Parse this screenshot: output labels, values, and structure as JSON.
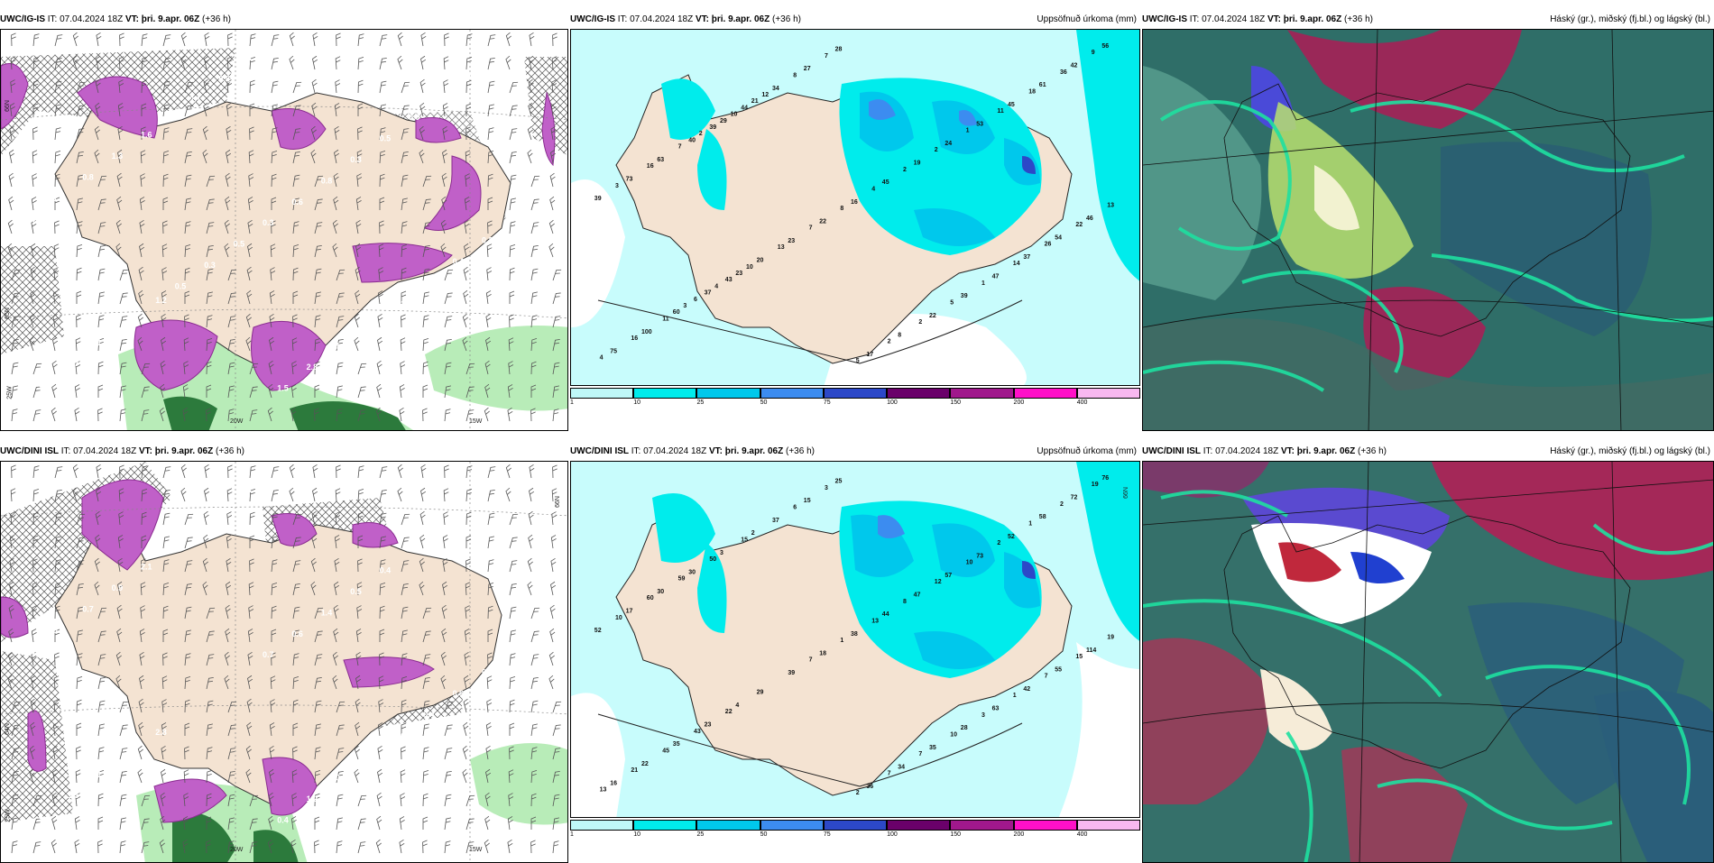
{
  "rows": [
    {
      "model": "UWC/IG-IS",
      "panels": [
        {
          "model": "UWC/IG-IS",
          "it_label": "IT:",
          "it": "07.04.2024 18Z",
          "vt_label": "VT:",
          "vt": "þri. 9.apr. 06Z",
          "lead": "(+36 h)",
          "right_title": ""
        },
        {
          "model": "UWC/IG-IS",
          "it_label": "IT:",
          "it": "07.04.2024 18Z",
          "vt_label": "VT:",
          "vt": "þri. 9.apr. 06Z",
          "lead": "(+36 h)",
          "right_title": "Uppsöfnuð úrkoma (mm)"
        },
        {
          "model": "UWC/IG-IS",
          "it_label": "IT:",
          "it": "07.04.2024 18Z",
          "vt_label": "VT:",
          "vt": "þri. 9.apr. 06Z",
          "lead": "(+36 h)",
          "right_title": "Háský (gr.), miðský (fj.bl.) og lágský (bl.)"
        }
      ],
      "precip_labels": [
        "21",
        "23",
        "29",
        "37",
        "40",
        "60",
        "63",
        "100",
        "73",
        "75",
        "39",
        "56",
        "46",
        "42",
        "54",
        "61",
        "37",
        "45",
        "47",
        "53",
        "39",
        "24",
        "22",
        "19",
        "8",
        "45",
        "17",
        "16",
        "28",
        "22",
        "27",
        "23",
        "34",
        "20",
        "44",
        "43",
        "39",
        "6",
        "7",
        "11",
        "16",
        "16",
        "3",
        "4",
        "13",
        "9",
        "22",
        "36",
        "26",
        "18",
        "14",
        "11",
        "1",
        "1",
        "5",
        "2",
        "2",
        "2",
        "2",
        "4",
        "5",
        "8",
        "7",
        "7",
        "8",
        "13",
        "12",
        "10",
        "10",
        "4",
        "2",
        "3"
      ],
      "wind_labels": [
        "0.4",
        "1.2",
        "1.6",
        "0.9",
        "1.3",
        "1.6",
        "0.8",
        "0.7",
        "1.5",
        "0.7",
        "0.4",
        "0.5",
        "0.3",
        "1.4",
        "0.4",
        "1.4",
        "0.3",
        "0.9",
        "1.2",
        "0.5",
        "1.4",
        "0.3",
        "1.9",
        "0.8",
        "2.8",
        "0.6",
        "1.5",
        "0.3",
        "1.4",
        "0.5",
        "0.8",
        "0.3",
        "2.1",
        "0.5"
      ]
    },
    {
      "model": "UWC/DINI ISL",
      "panels": [
        {
          "model": "UWC/DINI ISL",
          "it_label": "IT:",
          "it": "07.04.2024 18Z",
          "vt_label": "VT:",
          "vt": "þri. 9.apr. 06Z",
          "lead": "(+36 h)",
          "right_title": ""
        },
        {
          "model": "UWC/DINI ISL",
          "it_label": "IT:",
          "it": "07.04.2024 18Z",
          "vt_label": "VT:",
          "vt": "þri. 9.apr. 06Z",
          "lead": "(+36 h)",
          "right_title": "Uppsöfnuð úrkoma (mm)"
        },
        {
          "model": "UWC/DINI ISL",
          "it_label": "IT:",
          "it": "07.04.2024 18Z",
          "vt_label": "VT:",
          "vt": "þri. 9.apr. 06Z",
          "lead": "(+36 h)",
          "right_title": "Háský (gr.), miðský (fj.bl.) og lágský (bl.)"
        }
      ],
      "precip_labels": [
        "2",
        "4",
        "3",
        "23",
        "30",
        "35",
        "30",
        "22",
        "17",
        "16",
        "52",
        "76",
        "114",
        "72",
        "55",
        "58",
        "42",
        "52",
        "63",
        "73",
        "28",
        "57",
        "35",
        "47",
        "34",
        "44",
        "36",
        "38",
        "25",
        "18",
        "15",
        "39",
        "37",
        "29",
        "15",
        "22",
        "50",
        "43",
        "59",
        "45",
        "60",
        "21",
        "10",
        "13",
        "19",
        "19",
        "15",
        "2",
        "7",
        "1",
        "1",
        "2",
        "3",
        "10",
        "10",
        "12",
        "7",
        "8",
        "7",
        "13",
        "2",
        "1",
        "3",
        "7",
        "6"
      ],
      "wind_labels": [
        "2.9",
        "2.8",
        "2.1",
        "3.1",
        "0.9",
        "1.3",
        "0.7",
        "1.5",
        "0.4",
        "0.5",
        "0.6",
        "1.3",
        "0.8",
        "0.4",
        "0.9",
        "0.3",
        "0.4",
        "0.6",
        "2.0",
        "0.4",
        "0.4",
        "0.5",
        "0.5",
        "1.4",
        "1.2",
        "0.6",
        "0.4",
        "0.7",
        "1.4"
      ]
    }
  ],
  "colorbar": {
    "ticks": [
      "1",
      "10",
      "25",
      "50",
      "75",
      "100",
      "150",
      "200",
      "400"
    ],
    "colors": [
      "#bff8f8",
      "#00ecec",
      "#00c8ec",
      "#3c8cf0",
      "#2c48c8",
      "#6a006a",
      "#a0188c",
      "#ff10c8",
      "#f8b8f0"
    ]
  },
  "grid_labels": [
    "66N",
    "65N",
    "64N",
    "25W",
    "20W",
    "15W"
  ],
  "colors": {
    "land": "#f4e3d2",
    "sea_precip": "#c8fcfc",
    "snow": "#c060c8",
    "rain_light": "#b8ecb8",
    "rain_dark": "#2c7a3c",
    "cloud_bg": "#3c7a70"
  }
}
